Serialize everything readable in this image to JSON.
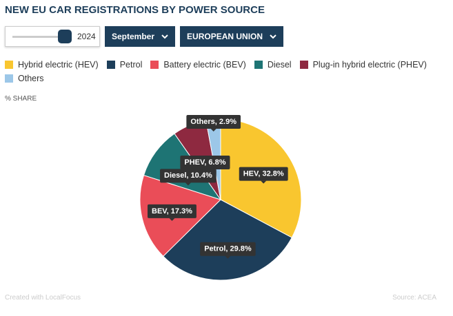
{
  "controls": {
    "year": "2024",
    "month": "September",
    "region": "EUROPEAN UNION"
  },
  "chart_data": {
    "type": "pie",
    "title": "NEW EU CAR REGISTRATIONS BY POWER SOURCE",
    "subtitle": "% SHARE",
    "categories": [
      "Hybrid electric (HEV)",
      "Petrol",
      "Battery electric (BEV)",
      "Diesel",
      "Plug-in hybrid electric (PHEV)",
      "Others"
    ],
    "values": [
      32.8,
      29.8,
      17.3,
      10.4,
      6.8,
      2.9
    ],
    "value_labels": [
      "HEV, 32.8%",
      "Petrol, 29.8%",
      "BEV, 17.3%",
      "Diesel, 10.4%",
      "PHEV, 6.8%",
      "Others, 2.9%"
    ],
    "colors": [
      "#f9c62f",
      "#1d3e5a",
      "#ea4d58",
      "#1e7474",
      "#8e2940",
      "#9cc7e8"
    ]
  },
  "footer": {
    "credit": "Created with LocalFocus",
    "source": "Source: ACEA"
  }
}
